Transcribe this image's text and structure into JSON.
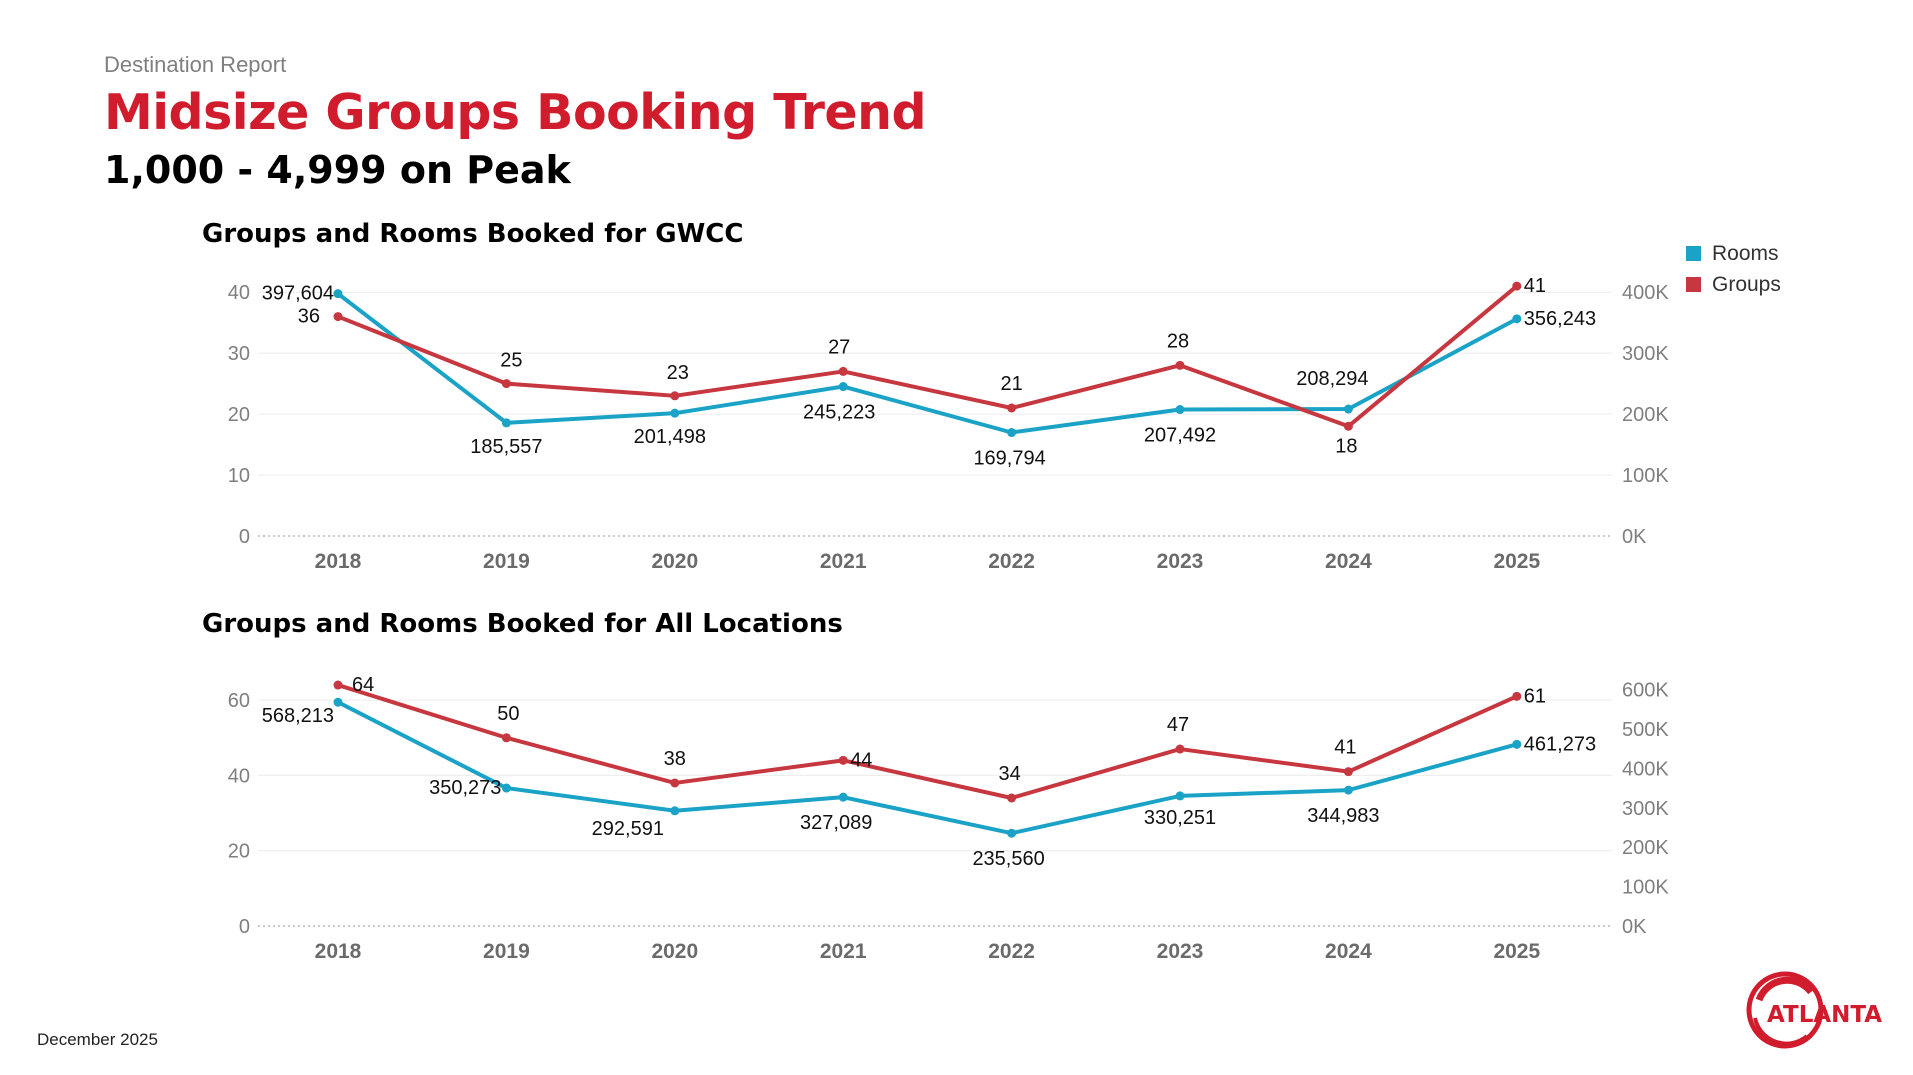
{
  "header": {
    "eyebrow": "Destination Report",
    "title": "Midsize Groups Booking Trend",
    "subtitle": "1,000 - 4,999 on Peak"
  },
  "legend": {
    "items": [
      {
        "label": "Rooms",
        "color": "#1aa3c6"
      },
      {
        "label": "Groups",
        "color": "#c7373f"
      }
    ]
  },
  "footer": {
    "date": "December 2025"
  },
  "logo": {
    "text": "ATLANTA"
  },
  "colors": {
    "rooms": "#1aa3c6",
    "groups": "#c7373f",
    "title": "#d01c2c",
    "axis": "#7f7f7f"
  },
  "chart_data": [
    {
      "type": "line",
      "title": "Groups and Rooms Booked for GWCC",
      "categories": [
        "2018",
        "2019",
        "2020",
        "2021",
        "2022",
        "2023",
        "2024",
        "2025"
      ],
      "series": [
        {
          "name": "Groups",
          "axis": "left",
          "values": [
            36,
            25,
            23,
            27,
            21,
            28,
            18,
            41
          ],
          "labels": [
            "36",
            "25",
            "23",
            "27",
            "21",
            "28",
            "18",
            "41"
          ]
        },
        {
          "name": "Rooms",
          "axis": "right",
          "values": [
            397604,
            185557,
            201498,
            245223,
            169794,
            207492,
            208294,
            356243
          ],
          "labels": [
            "397,604",
            "185,557",
            "201,498",
            "245,223",
            "169,794",
            "207,492",
            "208,294",
            "356,243"
          ]
        }
      ],
      "left_axis": {
        "ticks": [
          0,
          10,
          20,
          30,
          40
        ],
        "tick_labels": [
          "0",
          "10",
          "20",
          "30",
          "40"
        ],
        "ylim": [
          0,
          42
        ]
      },
      "right_axis": {
        "ticks": [
          0,
          100000,
          200000,
          300000,
          400000
        ],
        "tick_labels": [
          "0K",
          "100K",
          "200K",
          "300K",
          "400K"
        ],
        "ylim": [
          0,
          420000
        ]
      }
    },
    {
      "type": "line",
      "title": "Groups and Rooms Booked for All Locations",
      "categories": [
        "2018",
        "2019",
        "2020",
        "2021",
        "2022",
        "2023",
        "2024",
        "2025"
      ],
      "series": [
        {
          "name": "Groups",
          "axis": "left",
          "values": [
            64,
            50,
            38,
            44,
            34,
            47,
            41,
            61
          ],
          "labels": [
            "64",
            "50",
            "38",
            "44",
            "34",
            "47",
            "41",
            "61"
          ]
        },
        {
          "name": "Rooms",
          "axis": "right",
          "values": [
            568213,
            350273,
            292591,
            327089,
            235560,
            330251,
            344983,
            461273
          ],
          "labels": [
            "568,213",
            "350,273",
            "292,591",
            "327,089",
            "235,560",
            "330,251",
            "344,983",
            "461,273"
          ]
        }
      ],
      "left_axis": {
        "ticks": [
          0,
          20,
          40,
          60
        ],
        "tick_labels": [
          "0",
          "20",
          "40",
          "60"
        ],
        "ylim": [
          0,
          68
        ]
      },
      "right_axis": {
        "ticks": [
          0,
          100000,
          200000,
          300000,
          400000,
          500000,
          600000
        ],
        "tick_labels": [
          "0K",
          "100K",
          "200K",
          "300K",
          "400K",
          "500K",
          "600K"
        ],
        "ylim": [
          0,
          650000
        ]
      }
    }
  ]
}
